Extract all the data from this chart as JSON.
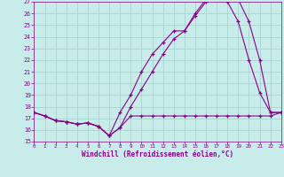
{
  "xlabel": "Windchill (Refroidissement éolien,°C)",
  "background_color": "#c8ecea",
  "grid_color": "#a8d4d0",
  "line_color": "#880088",
  "xlim": [
    0,
    23
  ],
  "ylim": [
    15,
    27
  ],
  "yticks": [
    15,
    16,
    17,
    18,
    19,
    20,
    21,
    22,
    23,
    24,
    25,
    26,
    27
  ],
  "xticks": [
    0,
    1,
    2,
    3,
    4,
    5,
    6,
    7,
    8,
    9,
    10,
    11,
    12,
    13,
    14,
    15,
    16,
    17,
    18,
    19,
    20,
    21,
    22,
    23
  ],
  "series": [
    {
      "x": [
        0,
        1,
        2,
        3,
        4,
        5,
        6,
        7,
        8,
        9,
        10,
        11,
        12,
        13,
        14,
        15,
        16,
        17,
        18,
        19,
        20,
        21,
        22,
        23
      ],
      "y": [
        17.5,
        17.2,
        16.8,
        16.7,
        16.5,
        16.6,
        16.3,
        15.5,
        16.2,
        17.2,
        17.2,
        17.2,
        17.2,
        17.2,
        17.2,
        17.2,
        17.2,
        17.2,
        17.2,
        17.2,
        17.2,
        17.2,
        17.2,
        17.5
      ]
    },
    {
      "x": [
        0,
        1,
        2,
        3,
        4,
        5,
        6,
        7,
        8,
        9,
        10,
        11,
        12,
        13,
        14,
        15,
        16,
        17,
        18,
        19,
        20,
        21,
        22,
        23
      ],
      "y": [
        17.5,
        17.2,
        16.8,
        16.7,
        16.5,
        16.6,
        16.3,
        15.5,
        16.2,
        18.0,
        19.5,
        21.0,
        22.5,
        23.8,
        24.5,
        26.0,
        27.2,
        27.3,
        27.0,
        25.3,
        22.0,
        19.2,
        17.5,
        17.5
      ]
    },
    {
      "x": [
        0,
        1,
        2,
        3,
        4,
        5,
        6,
        7,
        8,
        9,
        10,
        11,
        12,
        13,
        14,
        15,
        16,
        17,
        18,
        19,
        20,
        21,
        22,
        23
      ],
      "y": [
        17.5,
        17.2,
        16.8,
        16.7,
        16.5,
        16.6,
        16.3,
        15.5,
        17.5,
        19.0,
        21.0,
        22.5,
        23.5,
        24.5,
        24.5,
        25.8,
        27.0,
        27.3,
        27.3,
        27.2,
        25.3,
        22.0,
        17.5,
        17.5
      ]
    }
  ]
}
